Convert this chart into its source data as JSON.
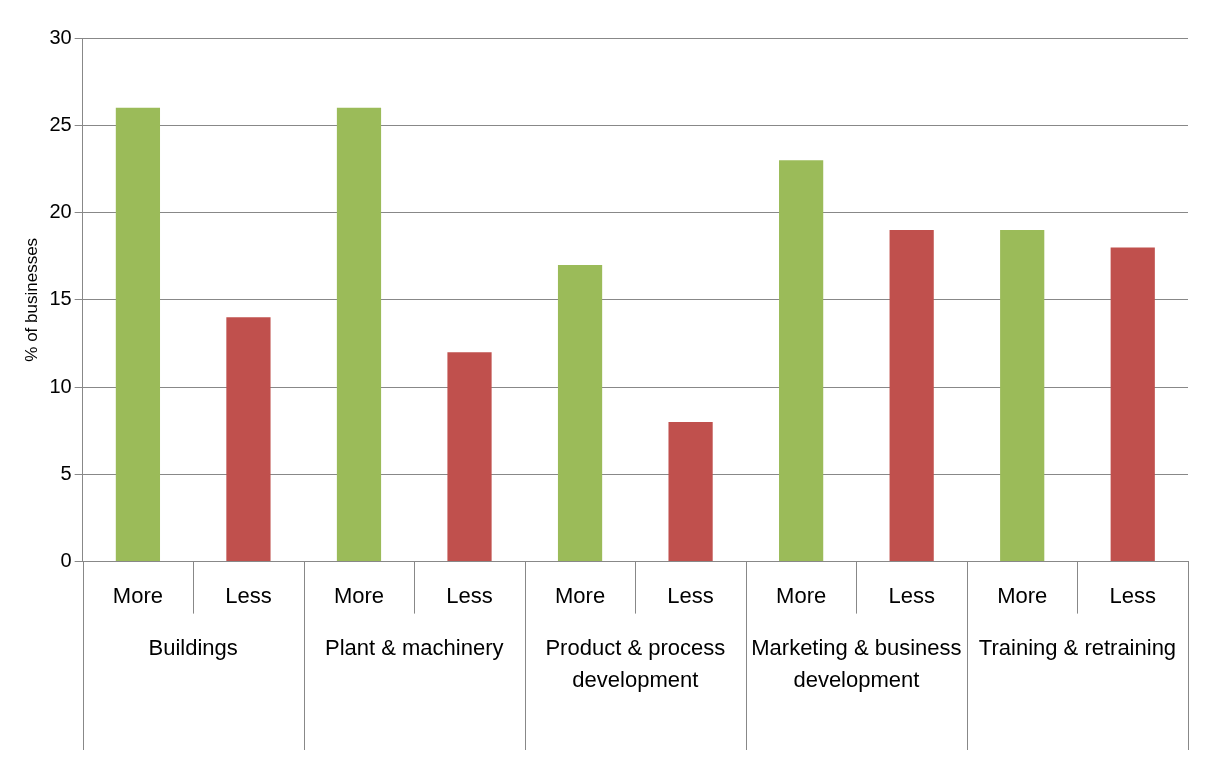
{
  "chart_data": {
    "type": "bar",
    "ylabel": "% of businesses",
    "categories": [
      "More",
      "Less",
      "More",
      "Less",
      "More",
      "Less",
      "More",
      "Less",
      "More",
      "Less"
    ],
    "values": [
      26,
      14,
      26,
      12,
      17,
      8,
      23,
      19,
      19,
      18
    ],
    "colors": [
      "#9bbb59",
      "#c0504d",
      "#9bbb59",
      "#c0504d",
      "#9bbb59",
      "#c0504d",
      "#9bbb59",
      "#c0504d",
      "#9bbb59",
      "#c0504d"
    ],
    "annotations": [
      "Buildings",
      "Plant & machinery",
      "Product & process development",
      "Marketing & business development",
      "Training & retraining"
    ],
    "ylim": [
      0,
      30
    ],
    "yticks": [
      0,
      5,
      10,
      15,
      20,
      25,
      30
    ],
    "grid": "y",
    "legend": false
  }
}
